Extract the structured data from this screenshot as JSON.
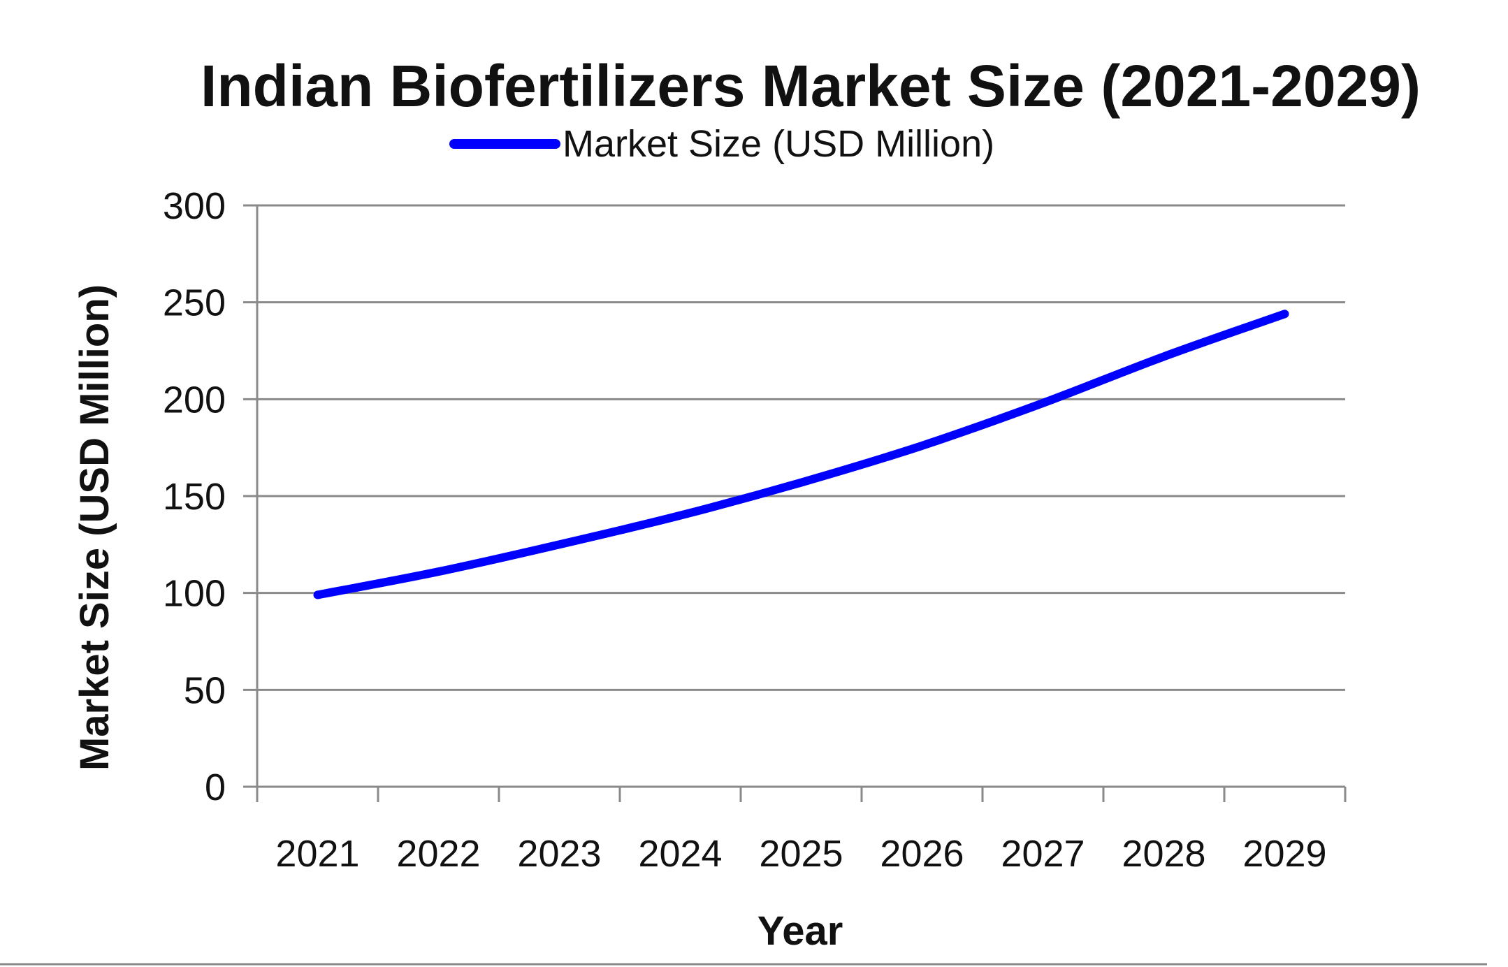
{
  "chart_data": {
    "type": "line",
    "title": "Indian Biofertilizers Market Size (2021-2029)",
    "xlabel": "Year",
    "ylabel": "Market Size (USD Million)",
    "categories": [
      "2021",
      "2022",
      "2023",
      "2024",
      "2025",
      "2026",
      "2027",
      "2028",
      "2029"
    ],
    "series": [
      {
        "name": "Market Size (USD Million)",
        "values": [
          99,
          111,
          125,
          140,
          157,
          176,
          198,
          222,
          244
        ],
        "color": "#0000ff"
      }
    ],
    "ylim": [
      0,
      300
    ],
    "yticks": [
      0,
      50,
      100,
      150,
      200,
      250,
      300
    ],
    "grid": true,
    "legend": "top-center"
  }
}
